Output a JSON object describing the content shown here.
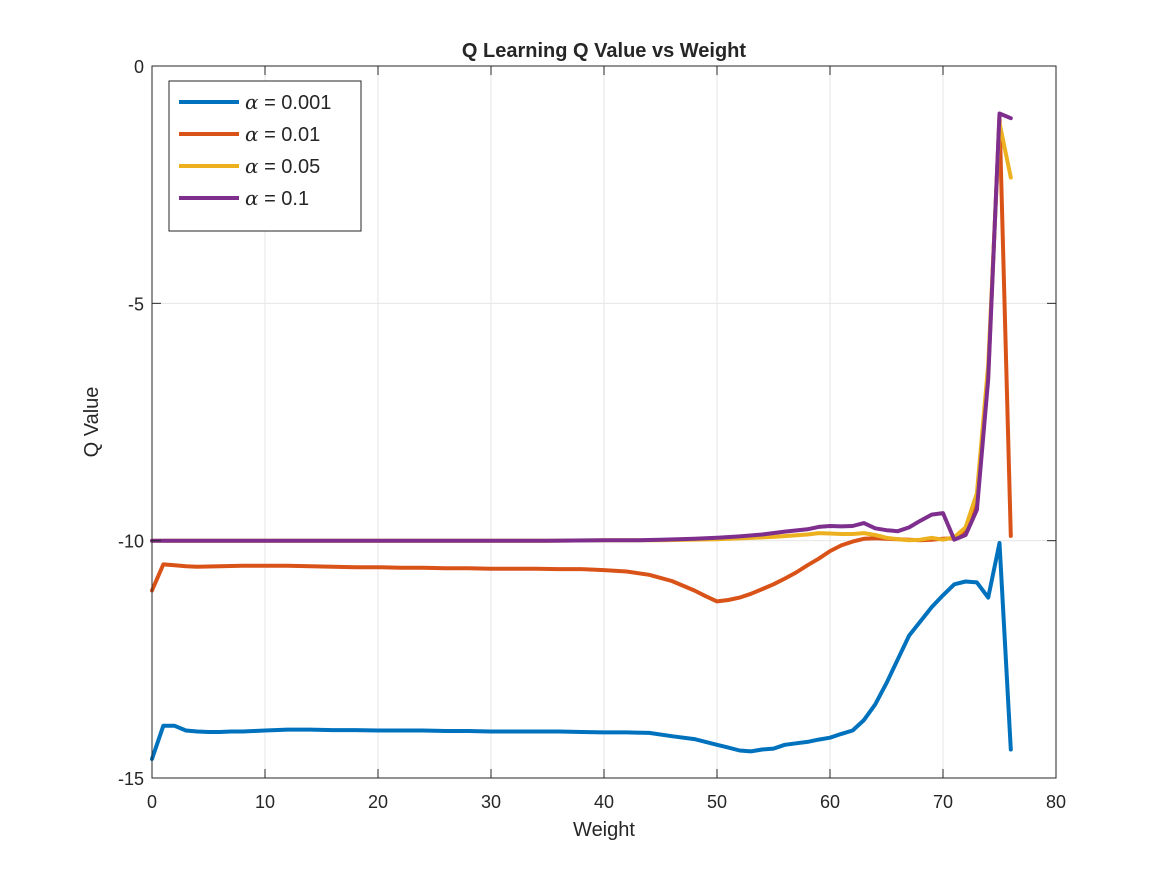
{
  "chart_data": {
    "type": "line",
    "title": "Q Learning Q Value vs Weight",
    "xlabel": "Weight",
    "ylabel": "Q Value",
    "xlim": [
      0,
      80
    ],
    "ylim": [
      -15,
      0
    ],
    "xticks": [
      0,
      10,
      20,
      30,
      40,
      50,
      60,
      70,
      80
    ],
    "yticks": [
      0,
      -5,
      -10,
      -15
    ],
    "xtick_labels": [
      "0",
      "10",
      "20",
      "30",
      "40",
      "50",
      "60",
      "70",
      "80"
    ],
    "ytick_labels": [
      "0",
      "-5",
      "-10",
      "-15"
    ],
    "grid": true,
    "legend_position": "top-left",
    "series": [
      {
        "name": "α = 0.001",
        "legend_symbol": "α",
        "legend_value": "= 0.001",
        "color": "#0072BD",
        "x": [
          0,
          1,
          2,
          3,
          4,
          5,
          6,
          7,
          8,
          9,
          10,
          12,
          14,
          16,
          18,
          20,
          22,
          24,
          26,
          28,
          30,
          32,
          34,
          36,
          38,
          40,
          42,
          44,
          46,
          48,
          50,
          51,
          52,
          53,
          54,
          55,
          56,
          57,
          58,
          59,
          60,
          61,
          62,
          63,
          64,
          65,
          66,
          67,
          68,
          69,
          70,
          71,
          72,
          73,
          74,
          75,
          76
        ],
        "y": [
          -14.6,
          -13.9,
          -13.9,
          -14.0,
          -14.02,
          -14.03,
          -14.03,
          -14.02,
          -14.02,
          -14.01,
          -14.0,
          -13.98,
          -13.98,
          -13.99,
          -13.99,
          -14.0,
          -14.0,
          -14.0,
          -14.01,
          -14.01,
          -14.02,
          -14.02,
          -14.02,
          -14.02,
          -14.03,
          -14.04,
          -14.04,
          -14.05,
          -14.12,
          -14.18,
          -14.3,
          -14.36,
          -14.42,
          -14.44,
          -14.4,
          -14.38,
          -14.3,
          -14.27,
          -14.24,
          -14.19,
          -14.15,
          -14.07,
          -14.0,
          -13.78,
          -13.45,
          -13.0,
          -12.5,
          -12.0,
          -11.7,
          -11.4,
          -11.15,
          -10.92,
          -10.86,
          -10.88,
          -11.2,
          -10.05,
          -14.4
        ]
      },
      {
        "name": "α = 0.01",
        "legend_symbol": "α",
        "legend_value": "= 0.01",
        "color": "#D95319",
        "x": [
          0,
          1,
          2,
          3,
          4,
          6,
          8,
          10,
          12,
          14,
          16,
          18,
          20,
          22,
          24,
          26,
          28,
          30,
          32,
          34,
          36,
          38,
          40,
          42,
          44,
          46,
          48,
          49,
          50,
          51,
          52,
          53,
          54,
          55,
          56,
          57,
          58,
          59,
          60,
          61,
          62,
          63,
          64,
          65,
          66,
          67,
          68,
          69,
          70,
          71,
          72,
          73,
          74,
          75,
          76
        ],
        "y": [
          -11.05,
          -10.5,
          -10.52,
          -10.54,
          -10.55,
          -10.54,
          -10.53,
          -10.53,
          -10.53,
          -10.54,
          -10.55,
          -10.56,
          -10.56,
          -10.57,
          -10.57,
          -10.58,
          -10.58,
          -10.59,
          -10.59,
          -10.59,
          -10.6,
          -10.6,
          -10.62,
          -10.65,
          -10.72,
          -10.85,
          -11.05,
          -11.17,
          -11.28,
          -11.25,
          -11.2,
          -11.12,
          -11.02,
          -10.92,
          -10.8,
          -10.67,
          -10.52,
          -10.38,
          -10.22,
          -10.1,
          -10.02,
          -9.96,
          -9.95,
          -9.96,
          -9.97,
          -9.98,
          -9.99,
          -9.98,
          -9.96,
          -9.95,
          -9.8,
          -9.1,
          -6.5,
          -1.05,
          -9.9
        ]
      },
      {
        "name": "α = 0.05",
        "legend_symbol": "α",
        "legend_value": "= 0.05",
        "color": "#EDB120",
        "x": [
          0,
          5,
          10,
          15,
          20,
          25,
          30,
          35,
          40,
          45,
          50,
          55,
          58,
          59,
          60,
          61,
          62,
          63,
          64,
          65,
          66,
          67,
          68,
          69,
          70,
          71,
          72,
          73,
          74,
          75,
          76
        ],
        "y": [
          -10,
          -10,
          -10,
          -10,
          -10,
          -10,
          -10,
          -10,
          -9.99,
          -9.99,
          -9.97,
          -9.92,
          -9.87,
          -9.84,
          -9.85,
          -9.86,
          -9.86,
          -9.84,
          -9.88,
          -9.94,
          -9.97,
          -9.99,
          -9.98,
          -9.94,
          -9.98,
          -9.93,
          -9.72,
          -9.0,
          -6.3,
          -1.2,
          -2.35
        ]
      },
      {
        "name": "α = 0.1",
        "legend_symbol": "α",
        "legend_value": "= 0.1",
        "color": "#7E2F8E",
        "x": [
          0,
          5,
          10,
          15,
          20,
          25,
          30,
          35,
          40,
          43,
          45,
          48,
          50,
          52,
          54,
          56,
          58,
          59,
          60,
          61,
          62,
          63,
          64,
          65,
          66,
          67,
          68,
          69,
          70,
          71,
          72,
          73,
          74,
          75,
          76
        ],
        "y": [
          -10,
          -10,
          -10,
          -10,
          -10,
          -10,
          -10,
          -10,
          -9.99,
          -9.99,
          -9.98,
          -9.96,
          -9.94,
          -9.91,
          -9.87,
          -9.81,
          -9.76,
          -9.71,
          -9.69,
          -9.7,
          -9.69,
          -9.63,
          -9.74,
          -9.78,
          -9.8,
          -9.72,
          -9.58,
          -9.45,
          -9.42,
          -9.98,
          -9.88,
          -9.35,
          -6.6,
          -1.0,
          -1.1
        ]
      }
    ]
  }
}
